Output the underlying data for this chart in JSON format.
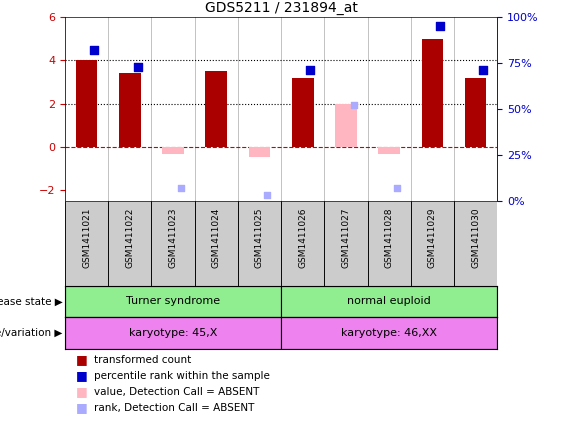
{
  "title": "GDS5211 / 231894_at",
  "samples": [
    "GSM1411021",
    "GSM1411022",
    "GSM1411023",
    "GSM1411024",
    "GSM1411025",
    "GSM1411026",
    "GSM1411027",
    "GSM1411028",
    "GSM1411029",
    "GSM1411030"
  ],
  "transformed_count": [
    4.0,
    3.4,
    null,
    3.5,
    null,
    3.2,
    null,
    null,
    5.0,
    3.2
  ],
  "transformed_count_absent": [
    null,
    null,
    -0.35,
    null,
    -0.45,
    null,
    2.0,
    -0.35,
    null,
    null
  ],
  "percentile_rank": [
    82,
    73,
    null,
    null,
    null,
    71,
    null,
    null,
    95,
    71
  ],
  "percentile_rank_absent": [
    null,
    null,
    7,
    null,
    3,
    null,
    52,
    7,
    null,
    null
  ],
  "ylim_left": [
    -2.5,
    6.0
  ],
  "ylim_right": [
    0,
    100
  ],
  "yticks_left": [
    -2,
    0,
    2,
    4,
    6
  ],
  "yticks_right": [
    0,
    25,
    50,
    75,
    100
  ],
  "ytick_labels_right": [
    "0%",
    "25%",
    "50%",
    "75%",
    "100%"
  ],
  "hlines": [
    4.0,
    2.0
  ],
  "zero_line": 0.0,
  "bar_width": 0.5,
  "bar_color_present": "#AA0000",
  "bar_color_absent": "#FFB6C1",
  "dot_color_present": "#0000CC",
  "dot_color_absent": "#AAAAFF",
  "bg_color": "#FFFFFF",
  "axis_color_left": "#CC0000",
  "axis_color_right": "#0000CC",
  "legend_items": [
    {
      "label": "transformed count",
      "color": "#AA0000"
    },
    {
      "label": "percentile rank within the sample",
      "color": "#0000CC"
    },
    {
      "label": "value, Detection Call = ABSENT",
      "color": "#FFB6C1"
    },
    {
      "label": "rank, Detection Call = ABSENT",
      "color": "#AAAAFF"
    }
  ]
}
